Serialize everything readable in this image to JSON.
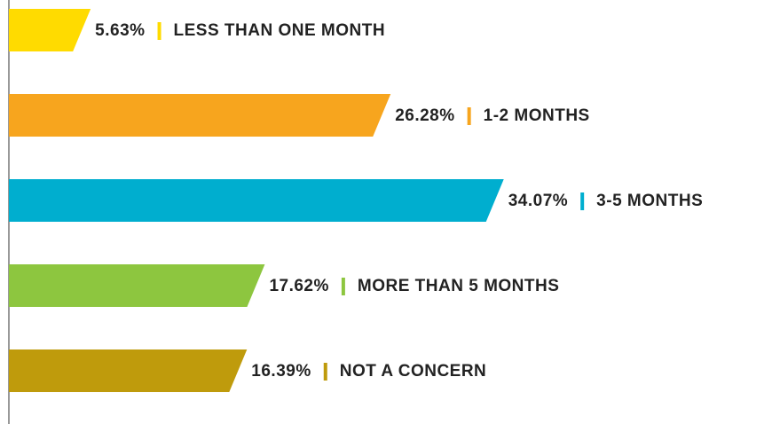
{
  "chart_data": {
    "type": "bar",
    "orientation": "horizontal",
    "categories": [
      "LESS THAN ONE MONTH",
      "1-2 MONTHS",
      "3-5 MONTHS",
      "MORE THAN 5 MONTHS",
      "NOT A CONCERN"
    ],
    "values": [
      5.63,
      26.28,
      34.07,
      17.62,
      16.39
    ],
    "value_labels": [
      "5.63%",
      "26.28%",
      "34.07%",
      "17.62%",
      "16.39%"
    ],
    "colors": [
      "#ffdb00",
      "#f7a51e",
      "#00aecf",
      "#8dc63f",
      "#bf9b0c"
    ]
  }
}
